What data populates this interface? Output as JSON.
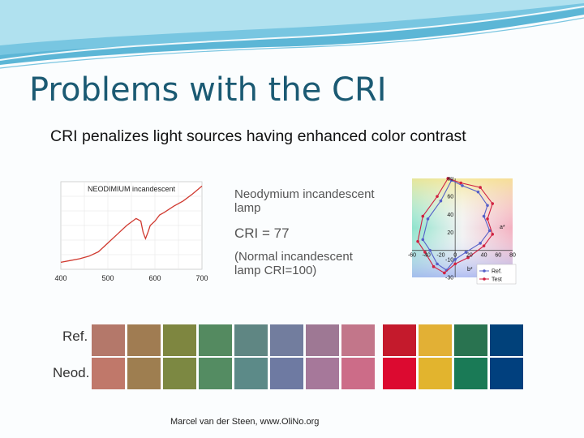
{
  "slide": {
    "title": "Problems with the CRI",
    "subtitle": "CRI penalizes light sources having enhanced color contrast",
    "footer": "Marcel van der Steen, www.OliNo.org"
  },
  "info": {
    "lamp_line1": "Neodymium incandescent",
    "lamp_line2": "lamp",
    "cri": "CRI = 77",
    "normal_line1": "(Normal incandescent",
    "normal_line2": "lamp CRI=100)"
  },
  "swatches": {
    "ref_label": "Ref.",
    "neod_label": "Neod.",
    "ref_colors": [
      "#b4786a",
      "#a07c52",
      "#7e8640",
      "#548a60",
      "#5f8683",
      "#727d9e",
      "#9e7894",
      "#c2768a",
      "#c41a2c",
      "#e2b035",
      "#297350",
      "#01417a"
    ],
    "neod_colors": [
      "#c0786a",
      "#9e7e50",
      "#7c8842",
      "#548c62",
      "#5c8a88",
      "#6e7aa2",
      "#a6789a",
      "#cc6c88",
      "#dc0a30",
      "#e2b42e",
      "#1a7a56",
      "#01407e"
    ]
  },
  "chart_data": [
    {
      "type": "line",
      "title": "NEODIMIUM incandescent",
      "xlabel": "",
      "ylabel": "",
      "xlim": [
        400,
        700
      ],
      "ylim": [
        0,
        1
      ],
      "x_ticks": [
        "400",
        "500",
        "600",
        "700"
      ],
      "grid": true,
      "series": [
        {
          "x": [
            400,
            420,
            440,
            460,
            480,
            500,
            520,
            540,
            560,
            570,
            575,
            580,
            585,
            590,
            600,
            610,
            620,
            640,
            660,
            680,
            700
          ],
          "values": [
            0.08,
            0.1,
            0.12,
            0.15,
            0.2,
            0.3,
            0.4,
            0.5,
            0.58,
            0.55,
            0.42,
            0.35,
            0.42,
            0.5,
            0.55,
            0.62,
            0.65,
            0.72,
            0.78,
            0.86,
            0.95
          ]
        }
      ]
    },
    {
      "type": "scatter",
      "title": "",
      "xlabel": "a*",
      "ylabel": "b*",
      "xlim": [
        -60,
        80
      ],
      "ylim": [
        -30,
        80
      ],
      "x_ticks": [
        "-60",
        "-40",
        "-20",
        "0",
        "20",
        "40",
        "60",
        "80"
      ],
      "y_ticks": [
        "80",
        "60",
        "40",
        "20",
        "-10",
        "-30"
      ],
      "legend": "bottom-right",
      "series": [
        {
          "name": "Ref.",
          "color": "#5560c8",
          "points": [
            [
              -5,
              78
            ],
            [
              10,
              72
            ],
            [
              32,
              65
            ],
            [
              45,
              50
            ],
            [
              40,
              38
            ],
            [
              48,
              22
            ],
            [
              35,
              8
            ],
            [
              15,
              -2
            ],
            [
              0,
              -10
            ],
            [
              -12,
              -22
            ],
            [
              -25,
              -15
            ],
            [
              -35,
              0
            ],
            [
              -45,
              12
            ],
            [
              -38,
              35
            ],
            [
              -20,
              55
            ],
            [
              -5,
              78
            ]
          ]
        },
        {
          "name": "Test",
          "color": "#d02040",
          "points": [
            [
              -10,
              80
            ],
            [
              8,
              75
            ],
            [
              35,
              70
            ],
            [
              52,
              52
            ],
            [
              45,
              35
            ],
            [
              52,
              18
            ],
            [
              40,
              5
            ],
            [
              18,
              -8
            ],
            [
              0,
              -15
            ],
            [
              -15,
              -25
            ],
            [
              -30,
              -18
            ],
            [
              -42,
              -2
            ],
            [
              -52,
              10
            ],
            [
              -45,
              38
            ],
            [
              -25,
              60
            ],
            [
              -10,
              80
            ]
          ]
        }
      ]
    }
  ]
}
